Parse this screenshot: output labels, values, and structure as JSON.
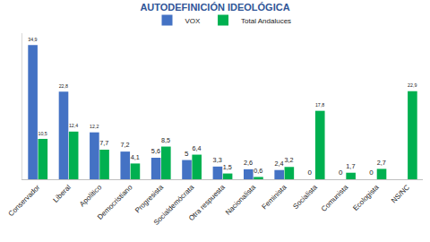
{
  "chart_data": {
    "type": "bar",
    "title": "AUTODEFINICIÓN IDEOLÓGICA",
    "categories": [
      "Conservador",
      "Liberal",
      "Apolítico",
      "Democristiano",
      "Progresista",
      "Socialdemócrata",
      "Otra respuesta",
      "Nacionalista",
      "Feminista",
      "Socialista",
      "Comunista",
      "Ecologista",
      "NS/NC"
    ],
    "series": [
      {
        "name": "VOX",
        "color": "#4472c4",
        "values": [
          34.9,
          22.8,
          12.2,
          7.2,
          5.6,
          5,
          3.3,
          2.6,
          2.4,
          0,
          0,
          0,
          null
        ],
        "value_labels": [
          "34,9",
          "22,8",
          "12,2",
          "7,2",
          "5,6",
          "5",
          "3,3",
          "2,6",
          "2,4",
          "0",
          "0",
          "0",
          null
        ]
      },
      {
        "name": "Total Andaluces",
        "color": "#00b050",
        "values": [
          10.5,
          12.4,
          7.7,
          4.1,
          8.5,
          6.4,
          1.5,
          0.6,
          3.2,
          17.8,
          1.7,
          2.7,
          22.9
        ],
        "value_labels": [
          "10,5",
          "12,4",
          "7,7",
          "4,1",
          "8,5",
          "6,4",
          "1,5",
          "0,6",
          "3,2",
          "17,8",
          "1,7",
          "2,7",
          "22,9"
        ]
      }
    ],
    "ylim": [
      0,
      38
    ],
    "data_labels": true,
    "tick_labels": "x",
    "grid": false,
    "legend": "top"
  }
}
